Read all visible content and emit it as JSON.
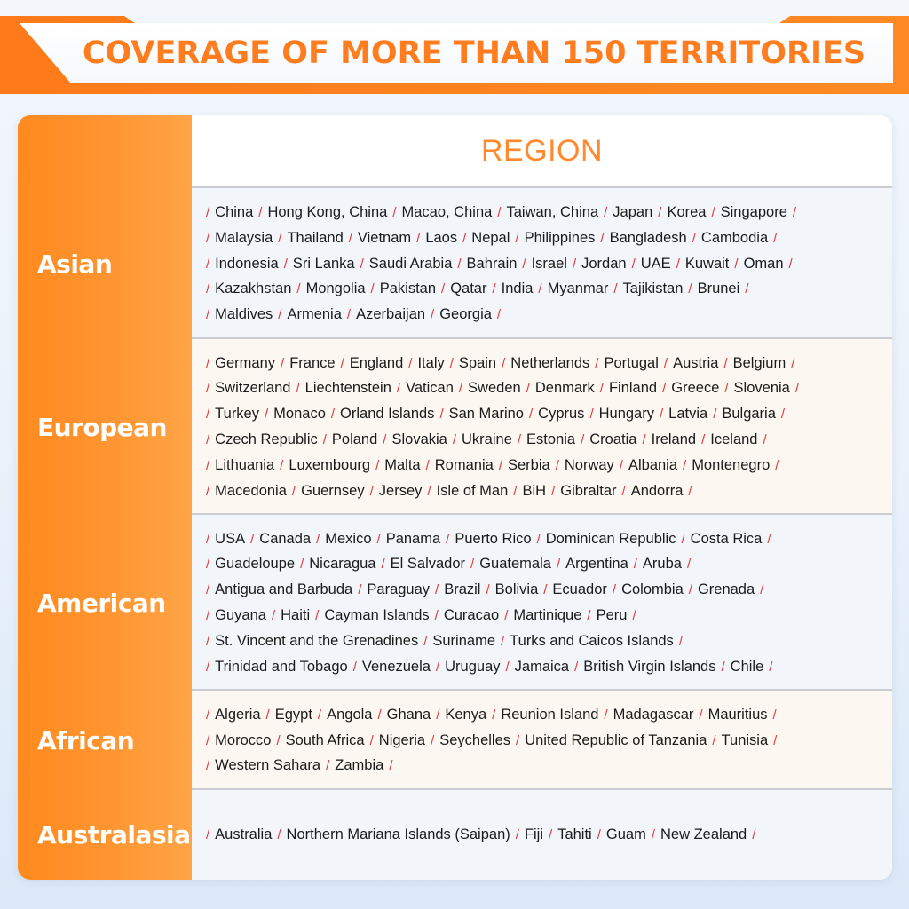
{
  "title": "COVERAGE OF MORE THAN 150 TERRITORIES",
  "header": "REGION",
  "separator": "/",
  "colors": {
    "accent": "#ff7d1e",
    "separator": "#e33a3a",
    "divider": "#c9ccd2"
  },
  "regions": [
    {
      "name": "Asian",
      "lines": [
        [
          "China",
          "Hong Kong, China",
          "Macao, China",
          "Taiwan, China",
          "Japan",
          "Korea",
          "Singapore"
        ],
        [
          "Malaysia",
          "Thailand",
          "Vietnam",
          "Laos",
          "Nepal",
          "Philippines",
          "Bangladesh",
          "Cambodia"
        ],
        [
          "Indonesia",
          "Sri Lanka",
          "Saudi Arabia",
          "Bahrain",
          "Israel",
          "Jordan",
          "UAE",
          "Kuwait",
          "Oman"
        ],
        [
          "Kazakhstan",
          "Mongolia",
          "Pakistan",
          "Qatar",
          "India",
          "Myanmar",
          "Tajikistan",
          "Brunei"
        ],
        [
          "Maldives",
          "Armenia",
          "Azerbaijan",
          "Georgia"
        ]
      ]
    },
    {
      "name": "European",
      "lines": [
        [
          "Germany",
          "France",
          "England",
          "Italy",
          "Spain",
          "Netherlands",
          "Portugal",
          "Austria",
          "Belgium"
        ],
        [
          "Switzerland",
          "Liechtenstein",
          "Vatican",
          "Sweden",
          "Denmark",
          "Finland",
          "Greece",
          "Slovenia"
        ],
        [
          "Turkey",
          "Monaco",
          "Orland Islands",
          "San Marino",
          "Cyprus",
          "Hungary",
          "Latvia",
          "Bulgaria"
        ],
        [
          "Czech Republic",
          "Poland",
          "Slovakia",
          "Ukraine",
          "Estonia",
          "Croatia",
          "Ireland",
          "Iceland"
        ],
        [
          "Lithuania",
          "Luxembourg",
          "Malta",
          "Romania",
          "Serbia",
          "Norway",
          "Albania",
          "Montenegro"
        ],
        [
          "Macedonia",
          "Guernsey",
          "Jersey",
          "Isle of Man",
          "BiH",
          "Gibraltar",
          "Andorra"
        ]
      ]
    },
    {
      "name": "American",
      "lines": [
        [
          "USA",
          "Canada",
          "Mexico",
          "Panama",
          "Puerto Rico",
          "Dominican Republic",
          "Costa Rica"
        ],
        [
          "Guadeloupe",
          "Nicaragua",
          "El Salvador",
          "Guatemala",
          "Argentina",
          "Aruba"
        ],
        [
          "Antigua and Barbuda",
          "Paraguay",
          "Brazil",
          "Bolivia",
          "Ecuador",
          "Colombia",
          "Grenada"
        ],
        [
          "Guyana",
          "Haiti",
          "Cayman Islands",
          "Curacao",
          "Martinique",
          "Peru"
        ],
        [
          "St. Vincent and the Grenadines",
          "Suriname",
          "Turks and Caicos Islands"
        ],
        [
          "Trinidad and Tobago",
          "Venezuela",
          "Uruguay",
          "Jamaica",
          "British Virgin Islands",
          "Chile"
        ]
      ]
    },
    {
      "name": "African",
      "lines": [
        [
          "Algeria",
          "Egypt",
          "Angola",
          "Ghana",
          "Kenya",
          "Reunion Island",
          "Madagascar",
          "Mauritius"
        ],
        [
          "Morocco",
          "South Africa",
          "Nigeria",
          "Seychelles",
          "United Republic of Tanzania",
          "Tunisia"
        ],
        [
          "Western Sahara",
          "Zambia"
        ]
      ]
    },
    {
      "name": "Australasia",
      "lines": [
        [
          "Australia",
          "Northern Mariana Islands (Saipan)",
          "Fiji",
          "Tahiti",
          "Guam",
          "New Zealand"
        ]
      ]
    }
  ]
}
